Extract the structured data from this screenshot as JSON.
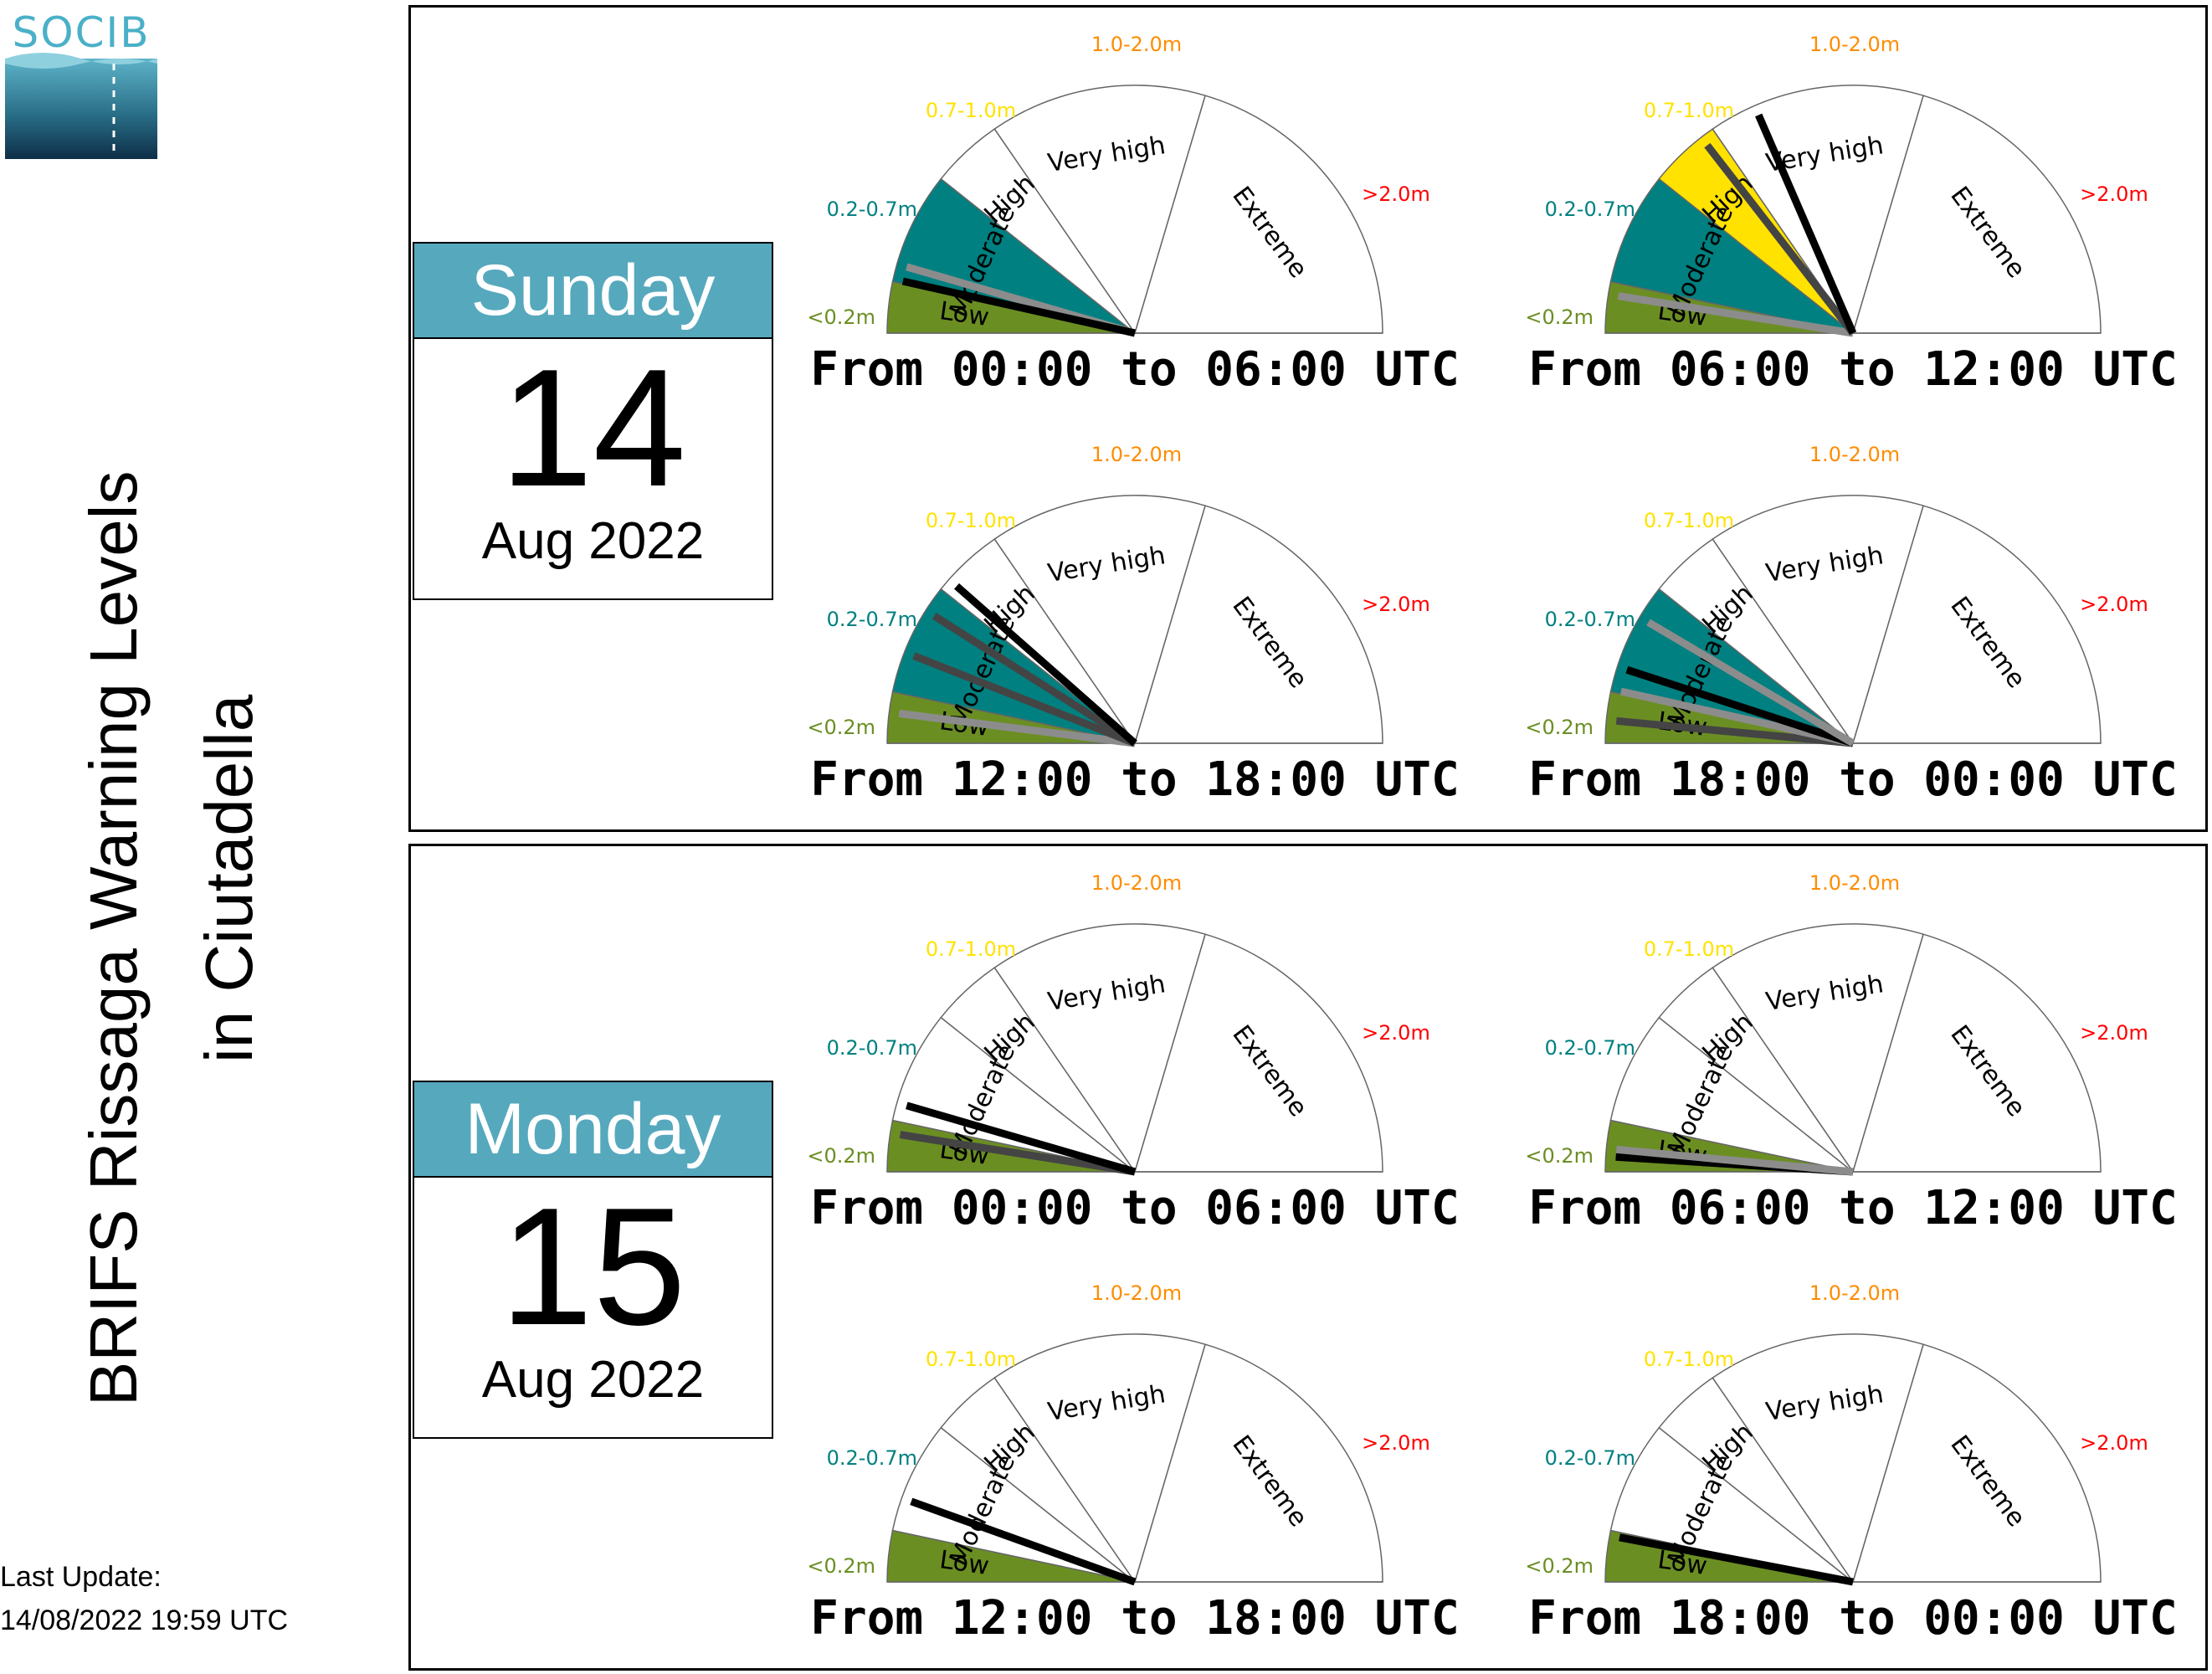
{
  "title_lines": [
    "BRIFS Rissaga Warning Levels",
    "in Ciutadella"
  ],
  "logo": {
    "text": "SOCIB"
  },
  "last_update": {
    "label": "Last Update:",
    "value": "14/08/2022 19:59 UTC"
  },
  "colors": {
    "low": "#6b8e23",
    "moderate": "#008080",
    "high": "#ffe200",
    "very_high": "#ff8c00",
    "extreme": "#ff0000",
    "calendar_header": "#56a8bd"
  },
  "scale": {
    "levels": [
      "Low",
      "Moderate",
      "High",
      "Very high",
      "Extreme"
    ],
    "ranges": [
      "<0.2m",
      "0.2-0.7m",
      "0.7-1.0m",
      "1.0-2.0m",
      ">2.0m"
    ],
    "range_colors": [
      "#6b8e23",
      "#008080",
      "#ffe200",
      "#ff8c00",
      "#ff0000"
    ]
  },
  "days": [
    {
      "weekday": "Sunday",
      "day": "14",
      "month_year": "Aug 2022",
      "periods": [
        {
          "label": "From 00:00 to 06:00 UTC",
          "filled_levels": 2,
          "needles": [
            {
              "value": 0.09,
              "shade": "gray"
            },
            {
              "value": 0.07,
              "shade": "black"
            }
          ]
        },
        {
          "label": "From 06:00 to 12:00 UTC",
          "filled_levels": 3,
          "needles": [
            {
              "value": 0.05,
              "shade": "gray"
            },
            {
              "value": 0.29,
              "shade": "dark"
            },
            {
              "value": 0.37,
              "shade": "black"
            }
          ]
        },
        {
          "label": "From 12:00 to 18:00 UTC",
          "filled_levels": 2,
          "needles": [
            {
              "value": 0.04,
              "shade": "gray"
            },
            {
              "value": 0.12,
              "shade": "dark"
            },
            {
              "value": 0.18,
              "shade": "dark"
            },
            {
              "value": 0.23,
              "shade": "black"
            }
          ]
        },
        {
          "label": "From 18:00 to 00:00 UTC",
          "filled_levels": 2,
          "needles": [
            {
              "value": 0.03,
              "shade": "dark"
            },
            {
              "value": 0.07,
              "shade": "gray"
            },
            {
              "value": 0.1,
              "shade": "black"
            },
            {
              "value": 0.17,
              "shade": "gray"
            }
          ]
        }
      ]
    },
    {
      "weekday": "Monday",
      "day": "15",
      "month_year": "Aug 2022",
      "periods": [
        {
          "label": "From 00:00 to 06:00 UTC",
          "filled_levels": 1,
          "needles": [
            {
              "value": 0.05,
              "shade": "dark"
            },
            {
              "value": 0.09,
              "shade": "black"
            }
          ]
        },
        {
          "label": "From 06:00 to 12:00 UTC",
          "filled_levels": 1,
          "needles": [
            {
              "value": 0.02,
              "shade": "black"
            },
            {
              "value": 0.03,
              "shade": "gray"
            }
          ]
        },
        {
          "label": "From 12:00 to 18:00 UTC",
          "filled_levels": 1,
          "needles": [
            {
              "value": 0.11,
              "shade": "black"
            }
          ]
        },
        {
          "label": "From 18:00 to 00:00 UTC",
          "filled_levels": 1,
          "needles": [
            {
              "value": 0.06,
              "shade": "black"
            }
          ]
        }
      ]
    }
  ],
  "chart_data": {
    "type": "gauge",
    "location": "Ciutadella",
    "categories": [
      "Low",
      "Moderate",
      "High",
      "Very high",
      "Extreme"
    ],
    "category_ranges": [
      "<0.2m",
      "0.2-0.7m",
      "0.7-1.0m",
      "1.0-2.0m",
      ">2.0m"
    ],
    "panels": [
      {
        "date": "Sunday 14 Aug 2022",
        "period": "From 00:00 to 06:00 UTC",
        "highest_level": "Moderate"
      },
      {
        "date": "Sunday 14 Aug 2022",
        "period": "From 06:00 to 12:00 UTC",
        "highest_level": "High"
      },
      {
        "date": "Sunday 14 Aug 2022",
        "period": "From 12:00 to 18:00 UTC",
        "highest_level": "Moderate"
      },
      {
        "date": "Sunday 14 Aug 2022",
        "period": "From 18:00 to 00:00 UTC",
        "highest_level": "Moderate"
      },
      {
        "date": "Monday 15 Aug 2022",
        "period": "From 00:00 to 06:00 UTC",
        "highest_level": "Low"
      },
      {
        "date": "Monday 15 Aug 2022",
        "period": "From 06:00 to 12:00 UTC",
        "highest_level": "Low"
      },
      {
        "date": "Monday 15 Aug 2022",
        "period": "From 12:00 to 18:00 UTC",
        "highest_level": "Low"
      },
      {
        "date": "Monday 15 Aug 2022",
        "period": "From 18:00 to 00:00 UTC",
        "highest_level": "Low"
      }
    ]
  }
}
